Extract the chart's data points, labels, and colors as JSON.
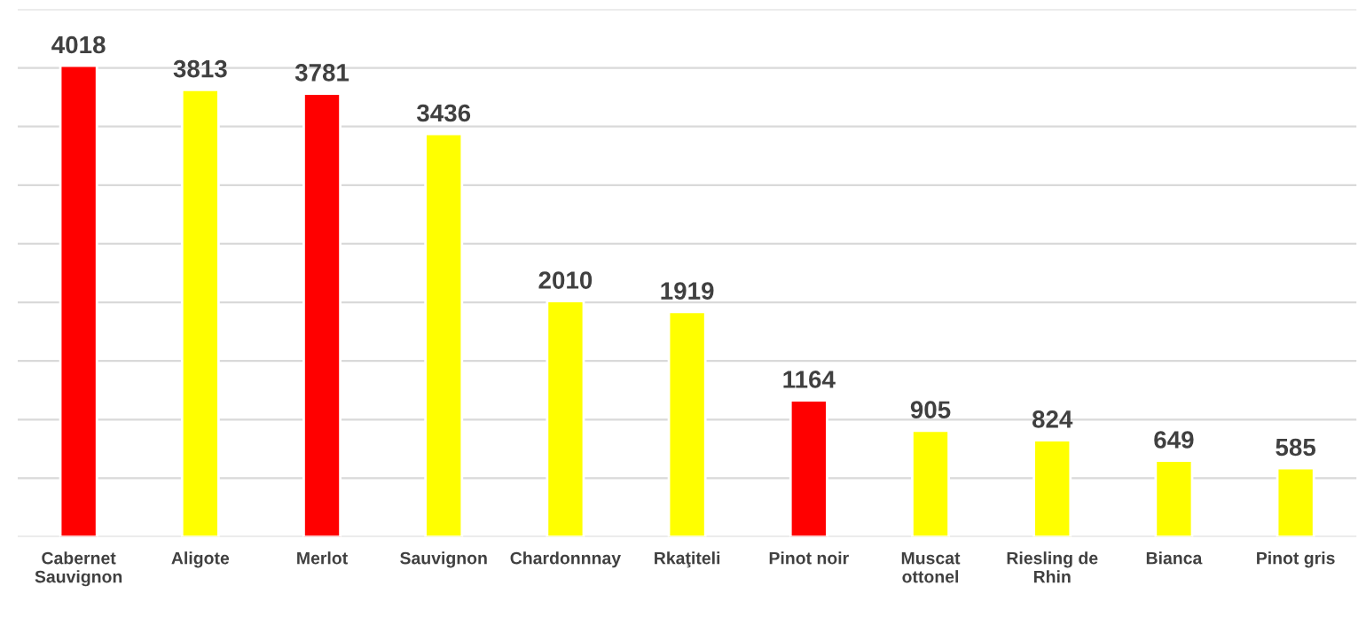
{
  "chart_data": {
    "type": "bar",
    "categories": [
      "Cabernet\nSauvignon",
      "Aligote",
      "Merlot",
      "Sauvignon",
      "Chardonnnay",
      "Rkaţiteli",
      "Pinot noir",
      "Muscat\nottonel",
      "Riesling de\nRhin",
      "Bianca",
      "Pinot gris"
    ],
    "values": [
      4018,
      3813,
      3781,
      3436,
      2010,
      1919,
      1164,
      905,
      824,
      649,
      585
    ],
    "colors": [
      "#ff0000",
      "#ffff00",
      "#ff0000",
      "#ffff00",
      "#ffff00",
      "#ffff00",
      "#ff0000",
      "#ffff00",
      "#ffff00",
      "#ffff00",
      "#ffff00"
    ],
    "ylim": [
      0,
      4500
    ],
    "yticks": [
      {
        "value": 0,
        "label": null
      },
      {
        "value": 500,
        "label": null
      },
      {
        "value": 1000,
        "label": null
      },
      {
        "value": 1500,
        "label": null
      },
      {
        "value": 2000,
        "label": null
      },
      {
        "value": 2500,
        "label": null
      },
      {
        "value": 3000,
        "label": null
      },
      {
        "value": 3500,
        "label": null
      },
      {
        "value": 4000,
        "label": null
      },
      {
        "value": 4500,
        "label": null
      }
    ],
    "grid": "y",
    "data_labels": true,
    "tick_labels": "x"
  }
}
